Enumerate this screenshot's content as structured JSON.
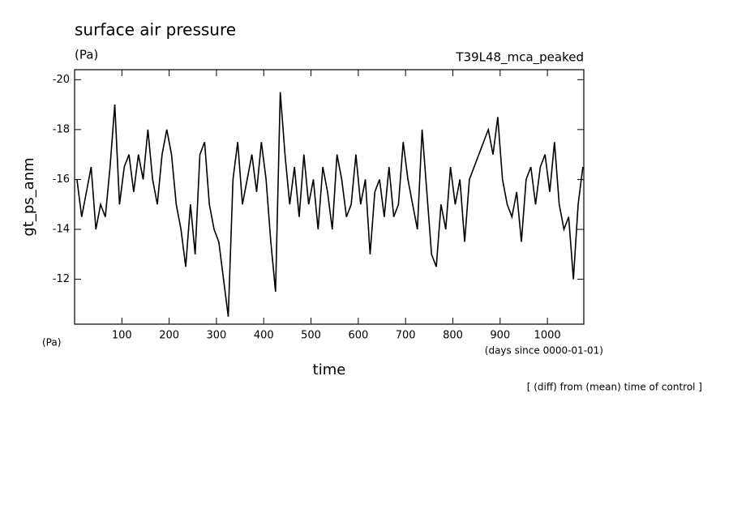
{
  "chart_data": {
    "type": "line",
    "title": "surface air pressure",
    "unit_label": "(Pa)",
    "run_label": "T39L48_mca_peaked",
    "y_label": "gt_ps_anm",
    "y_unit": "(Pa)",
    "x_label": "time",
    "x_unit": "(days since 0000-01-01)",
    "note": "[ (diff) from (mean) time of control ]",
    "x": [
      5,
      15,
      25,
      35,
      45,
      55,
      65,
      75,
      85,
      95,
      105,
      115,
      125,
      135,
      145,
      155,
      165,
      175,
      185,
      195,
      205,
      215,
      225,
      235,
      245,
      255,
      265,
      275,
      285,
      295,
      305,
      315,
      325,
      335,
      345,
      355,
      365,
      375,
      385,
      395,
      405,
      415,
      425,
      435,
      445,
      455,
      465,
      475,
      485,
      495,
      505,
      515,
      525,
      535,
      545,
      555,
      565,
      575,
      585,
      595,
      605,
      615,
      625,
      635,
      645,
      655,
      665,
      675,
      685,
      695,
      705,
      715,
      725,
      735,
      745,
      755,
      765,
      775,
      785,
      795,
      805,
      815,
      825,
      835,
      845,
      855,
      865,
      875,
      885,
      895,
      905,
      915,
      925,
      935,
      945,
      955,
      965,
      975,
      985,
      995,
      1005,
      1015,
      1025,
      1035,
      1045,
      1055,
      1065,
      1075
    ],
    "series": [
      {
        "color": "#000000",
        "values": [
          -16,
          -14.5,
          -15.5,
          -16.5,
          -14,
          -15,
          -14.5,
          -16.5,
          -19,
          -15,
          -16.5,
          -17,
          -15.5,
          -17,
          -16,
          -18,
          -16,
          -15,
          -17,
          -18,
          -17,
          -15,
          -14,
          -12.5,
          -15,
          -13,
          -17,
          -17.5,
          -15,
          -14,
          -13.5,
          -12,
          -10.5,
          -16,
          -17.5,
          -15,
          -16,
          -17,
          -15.5,
          -17.5,
          -16,
          -13.5,
          -11.5,
          -19.5,
          -17,
          -15,
          -16.5,
          -14.5,
          -17,
          -15,
          -16,
          -14,
          -16.5,
          -15.5,
          -14,
          -17,
          -16,
          -14.5,
          -15,
          -17,
          -15,
          -16,
          -13,
          -15.5,
          -16,
          -14.5,
          -16.5,
          -14.5,
          -15,
          -17.5,
          -16,
          -15,
          -14,
          -18,
          -15.5,
          -13,
          -12.5,
          -15,
          -14,
          -16.5,
          -15,
          -16,
          -13.5,
          -16,
          -16.5,
          -17,
          -17.5,
          -18,
          -17,
          -18.5,
          -16,
          -15,
          -14.5,
          -15.5,
          -13.5,
          -16,
          -16.5,
          -15,
          -16.5,
          -17,
          -15.5,
          -17.5,
          -15,
          -14,
          -14.5,
          -12,
          -15,
          -16.5
        ]
      }
    ],
    "xlim": [
      0,
      1077
    ],
    "xticks": [
      100,
      200,
      300,
      400,
      500,
      600,
      700,
      800,
      900,
      1000
    ],
    "ylim": [
      -10.2,
      -20.4
    ],
    "yticks": [
      -20,
      -18,
      -16,
      -14,
      -12
    ]
  }
}
